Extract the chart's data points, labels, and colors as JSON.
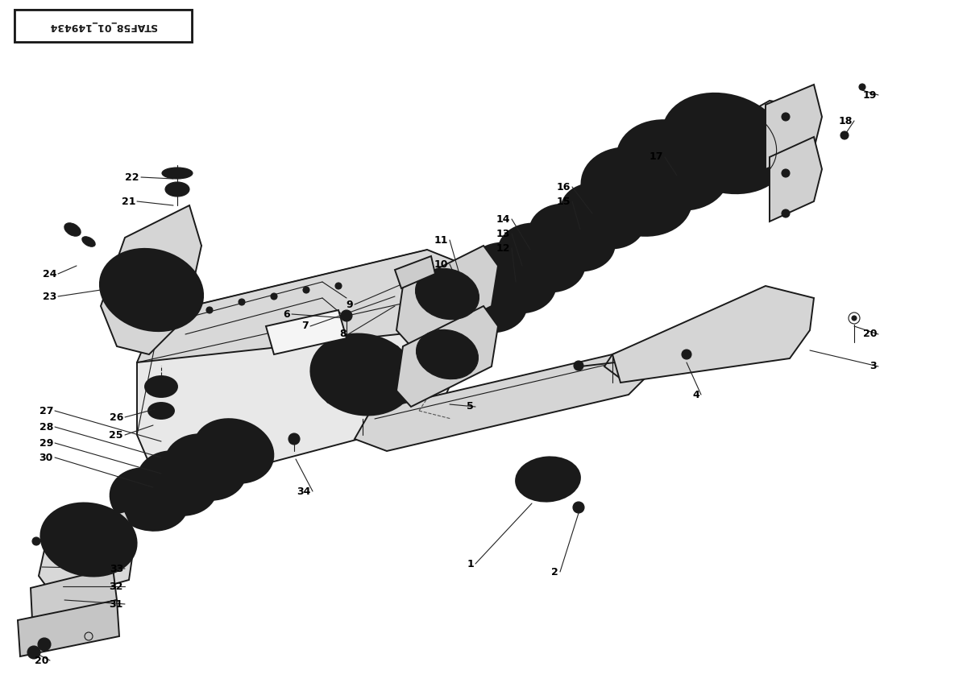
{
  "title": "STAF58_01_149434",
  "bg_color": "#ffffff",
  "line_color": "#1a1a1a",
  "text_color": "#000000",
  "fig_width": 12.0,
  "fig_height": 8.48,
  "dpi": 100
}
